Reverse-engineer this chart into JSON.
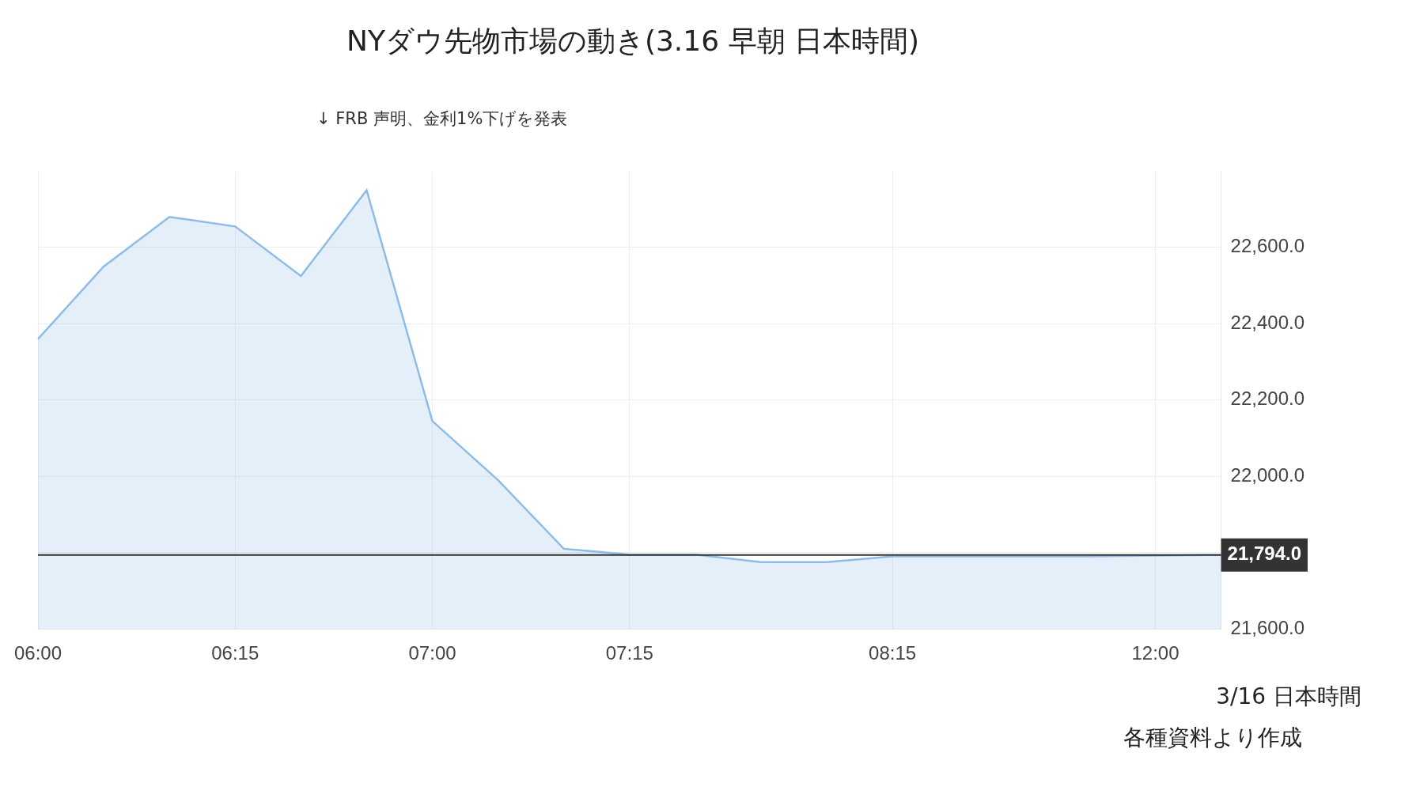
{
  "chart_data": {
    "type": "area",
    "title": "NYダウ先物市場の動き(3.16 早朝 日本時間)",
    "xlabel": "3/16 日本時間",
    "annotations": [
      "↓ FRB 声明、金利1%下げを発表",
      "各種資料より作成"
    ],
    "categories": [
      "06:00",
      null,
      null,
      "06:15",
      null,
      null,
      "07:00",
      null,
      null,
      "07:15",
      null,
      null,
      null,
      "08:15",
      null,
      null,
      null,
      "12:00",
      null
    ],
    "series": [
      {
        "color": "#8fbce6",
        "values": [
          22360,
          22550,
          22680,
          22655,
          22525,
          22750,
          22145,
          21990,
          21810,
          21795,
          21795,
          21775,
          21775,
          21790,
          21790,
          21790,
          21790,
          21792,
          21794
        ]
      }
    ],
    "ylim": [
      21600,
      22800
    ],
    "yticks": [
      {
        "value": 21600,
        "label": "21,600.0"
      },
      {
        "value": 21800,
        "label": null
      },
      {
        "value": 22000,
        "label": "22,000.0"
      },
      {
        "value": 22200,
        "label": "22,200.0"
      },
      {
        "value": 22400,
        "label": "22,400.0"
      },
      {
        "value": 22600,
        "label": "22,600.0"
      }
    ],
    "ref_lines": [
      {
        "axis": "y",
        "value": 21794,
        "label": "21,794.0",
        "color": "#333333"
      }
    ],
    "grid": true,
    "legend": false
  }
}
